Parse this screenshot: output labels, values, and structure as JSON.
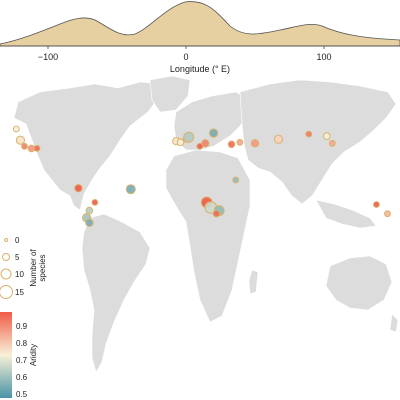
{
  "top_axis": {
    "label": "Longitude (° E)",
    "ticks": [
      "−100",
      "0",
      "100"
    ]
  },
  "legend_size": {
    "title_line1": "Number of",
    "title_line2": "species",
    "values": [
      "0",
      "5",
      "10",
      "15"
    ]
  },
  "legend_aridity": {
    "title": "Aridity",
    "ticks": [
      "0.9",
      "0.8",
      "0.7",
      "0.6",
      "0.5"
    ]
  },
  "colors": {
    "density_fill": "#e6cfa0",
    "land": "#dcdcdc",
    "size_ring": "#d9b26a",
    "aridity_high": "#f05a46",
    "aridity_mid": "#f7f1d8",
    "aridity_low": "#4a93a6"
  },
  "points": [
    {
      "lon": -123,
      "lat": 50,
      "species": 3,
      "aridity": 0.7
    },
    {
      "lon": -120,
      "lat": 39,
      "species": 6,
      "aridity": 0.72
    },
    {
      "lon": -117,
      "lat": 33,
      "species": 3,
      "aridity": 0.85
    },
    {
      "lon": -112,
      "lat": 31,
      "species": 4,
      "aridity": 0.82
    },
    {
      "lon": -108,
      "lat": 31,
      "species": 3,
      "aridity": 0.88
    },
    {
      "lon": -7,
      "lat": 38,
      "species": 5,
      "aridity": 0.72
    },
    {
      "lon": -4,
      "lat": 37,
      "species": 4,
      "aridity": 0.7
    },
    {
      "lon": 0,
      "lat": 40,
      "species": 3,
      "aridity": 0.75
    },
    {
      "lon": 2,
      "lat": 42,
      "species": 8,
      "aridity": 0.62
    },
    {
      "lon": 14,
      "lat": 36,
      "species": 5,
      "aridity": 0.85
    },
    {
      "lon": 20,
      "lat": 46,
      "species": 6,
      "aridity": 0.55
    },
    {
      "lon": 33,
      "lat": 35,
      "species": 4,
      "aridity": 0.88
    },
    {
      "lon": 39,
      "lat": 37,
      "species": 3,
      "aridity": 0.8
    },
    {
      "lon": 50,
      "lat": 36,
      "species": 5,
      "aridity": 0.82
    },
    {
      "lon": 67,
      "lat": 40,
      "species": 6,
      "aridity": 0.74
    },
    {
      "lon": 89,
      "lat": 45,
      "species": 3,
      "aridity": 0.86
    },
    {
      "lon": 102,
      "lat": 43,
      "species": 4,
      "aridity": 0.7
    },
    {
      "lon": 106,
      "lat": 36,
      "species": 3,
      "aridity": 0.8
    },
    {
      "lon": 10,
      "lat": 33,
      "species": 3,
      "aridity": 0.92
    },
    {
      "lon": 36,
      "lat": 0,
      "species": 3,
      "aridity": 0.58
    },
    {
      "lon": -78,
      "lat": -8,
      "species": 5,
      "aridity": 0.9
    },
    {
      "lon": -40,
      "lat": -9,
      "species": 7,
      "aridity": 0.55
    },
    {
      "lon": -66,
      "lat": -22,
      "species": 3,
      "aridity": 0.9
    },
    {
      "lon": -70,
      "lat": -30,
      "species": 4,
      "aridity": 0.62
    },
    {
      "lon": -72,
      "lat": -37,
      "species": 6,
      "aridity": 0.6
    },
    {
      "lon": -70,
      "lat": -42,
      "species": 5,
      "aridity": 0.55
    },
    {
      "lon": 15,
      "lat": -22,
      "species": 9,
      "aridity": 0.9
    },
    {
      "lon": 18,
      "lat": -27,
      "species": 10,
      "aridity": 0.65
    },
    {
      "lon": 24,
      "lat": -30,
      "species": 8,
      "aridity": 0.58
    },
    {
      "lon": 22,
      "lat": -33,
      "species": 4,
      "aridity": 0.88
    },
    {
      "lon": 138,
      "lat": -24,
      "species": 3,
      "aridity": 0.92
    },
    {
      "lon": 146,
      "lat": -33,
      "species": 3,
      "aridity": 0.78
    }
  ]
}
